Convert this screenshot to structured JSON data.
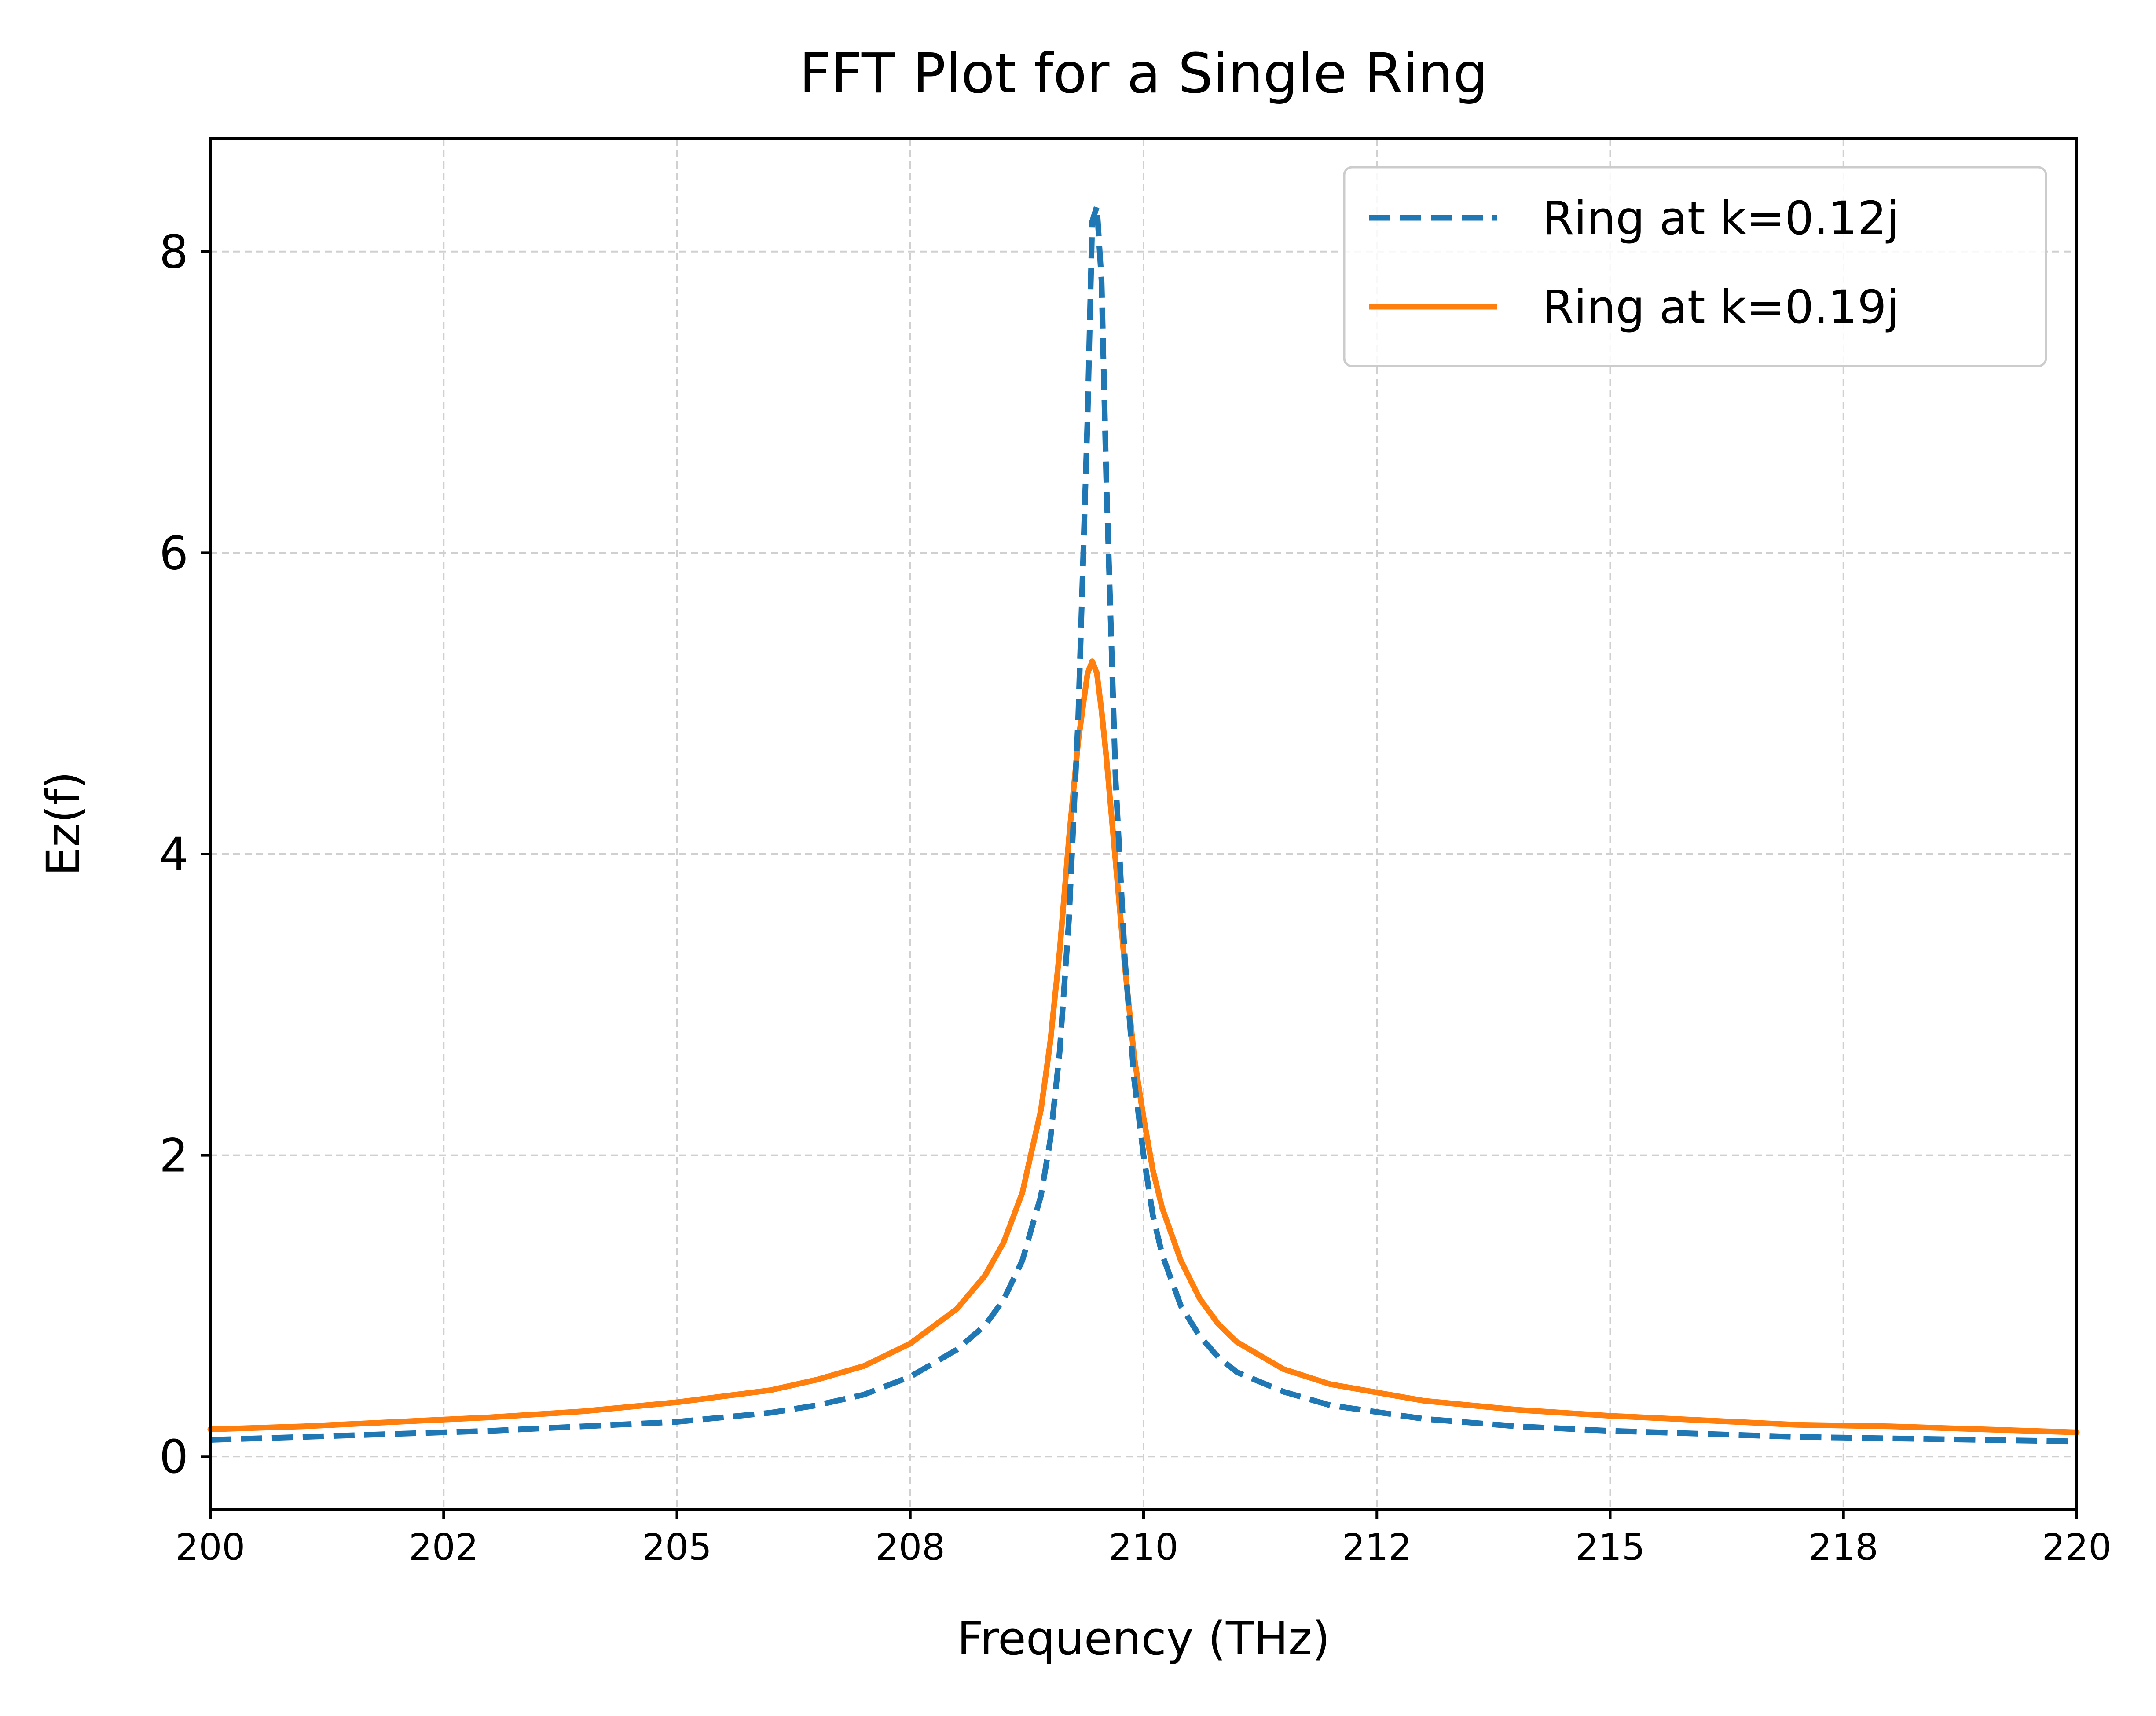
{
  "chart_data": {
    "type": "line",
    "title": "FFT Plot for a Single Ring",
    "xlabel": "Frequency (THz)",
    "ylabel": "Ez(f)",
    "xlim": [
      200,
      220
    ],
    "ylim": [
      -0.35,
      8.75
    ],
    "xticks": [
      {
        "value": 200,
        "label": "200"
      },
      {
        "value": 202.5,
        "label": "202"
      },
      {
        "value": 205,
        "label": "205"
      },
      {
        "value": 207.5,
        "label": "208"
      },
      {
        "value": 210,
        "label": "210"
      },
      {
        "value": 212.5,
        "label": "212"
      },
      {
        "value": 215,
        "label": "215"
      },
      {
        "value": 217.5,
        "label": "218"
      },
      {
        "value": 220,
        "label": "220"
      }
    ],
    "yticks": [
      {
        "value": 0,
        "label": "0"
      },
      {
        "value": 2,
        "label": "2"
      },
      {
        "value": 4,
        "label": "4"
      },
      {
        "value": 6,
        "label": "6"
      },
      {
        "value": 8,
        "label": "8"
      }
    ],
    "grid": true,
    "legend_position": "top-right",
    "series": [
      {
        "name": "Ring at k=0.12j",
        "color": "#1f77b4",
        "style": "dashed",
        "x": [
          200,
          201,
          202,
          203,
          204,
          205,
          206,
          206.5,
          207,
          207.5,
          208,
          208.3,
          208.5,
          208.7,
          208.9,
          209.0,
          209.1,
          209.2,
          209.3,
          209.4,
          209.45,
          209.5,
          209.55,
          209.6,
          209.7,
          209.8,
          209.9,
          210.0,
          210.1,
          210.2,
          210.4,
          210.6,
          210.8,
          211.0,
          211.5,
          212,
          213,
          214,
          215,
          216,
          217,
          218,
          219,
          220
        ],
        "y": [
          0.11,
          0.13,
          0.15,
          0.17,
          0.2,
          0.23,
          0.29,
          0.34,
          0.41,
          0.53,
          0.71,
          0.87,
          1.04,
          1.3,
          1.73,
          2.1,
          2.68,
          3.56,
          4.9,
          6.9,
          8.2,
          8.3,
          7.8,
          6.5,
          4.5,
          3.3,
          2.5,
          2.0,
          1.6,
          1.34,
          1.0,
          0.8,
          0.66,
          0.56,
          0.43,
          0.34,
          0.25,
          0.2,
          0.17,
          0.15,
          0.13,
          0.12,
          0.11,
          0.1
        ]
      },
      {
        "name": "Ring at k=0.19j",
        "color": "#ff7f0e",
        "style": "solid",
        "x": [
          200,
          201,
          202,
          203,
          204,
          205,
          206,
          206.5,
          207,
          207.5,
          208,
          208.3,
          208.5,
          208.7,
          208.9,
          209.0,
          209.1,
          209.2,
          209.3,
          209.4,
          209.45,
          209.5,
          209.55,
          209.6,
          209.7,
          209.8,
          209.9,
          210.0,
          210.1,
          210.2,
          210.4,
          210.6,
          210.8,
          211.0,
          211.5,
          212,
          213,
          214,
          215,
          216,
          217,
          218,
          219,
          220
        ],
        "y": [
          0.18,
          0.2,
          0.23,
          0.26,
          0.3,
          0.36,
          0.44,
          0.51,
          0.6,
          0.75,
          0.98,
          1.2,
          1.42,
          1.75,
          2.3,
          2.75,
          3.35,
          4.1,
          4.75,
          5.2,
          5.28,
          5.2,
          4.95,
          4.65,
          3.95,
          3.25,
          2.65,
          2.25,
          1.9,
          1.65,
          1.3,
          1.05,
          0.88,
          0.76,
          0.58,
          0.48,
          0.37,
          0.31,
          0.27,
          0.24,
          0.21,
          0.2,
          0.18,
          0.16
        ]
      }
    ]
  }
}
